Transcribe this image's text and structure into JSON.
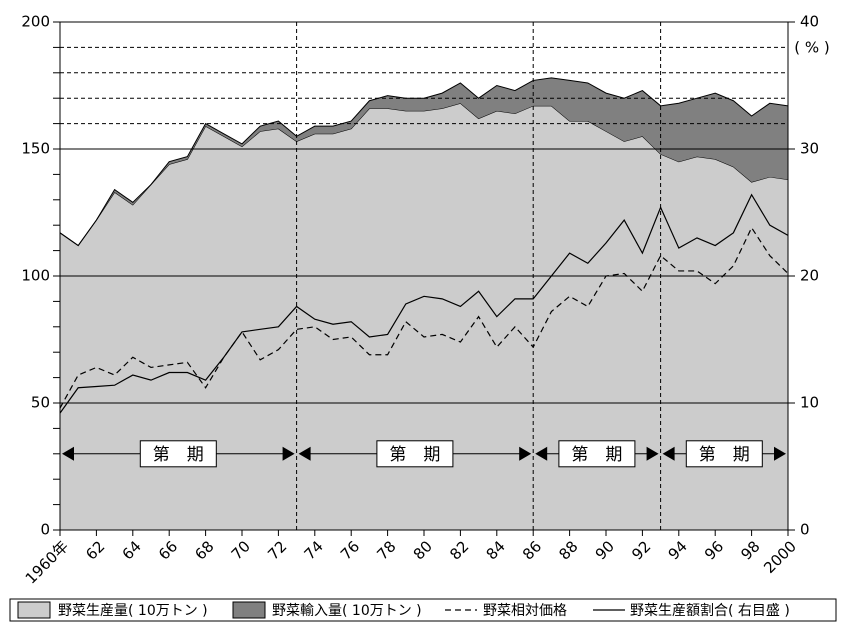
{
  "chart_data": {
    "type": "stacked-area-line",
    "x": [
      1960,
      1961,
      1962,
      1963,
      1964,
      1965,
      1966,
      1967,
      1968,
      1969,
      1970,
      1971,
      1972,
      1973,
      1974,
      1975,
      1976,
      1977,
      1978,
      1979,
      1980,
      1981,
      1982,
      1983,
      1984,
      1985,
      1986,
      1987,
      1988,
      1989,
      1990,
      1991,
      1992,
      1993,
      1994,
      1995,
      1996,
      1997,
      1998,
      1999,
      2000
    ],
    "series": [
      {
        "name": "野菜生産量( 10万トン )",
        "color": "#cccccc",
        "kind": "area",
        "values": [
          117,
          112,
          122,
          133,
          128,
          136,
          144,
          146,
          159,
          155,
          151,
          157,
          158,
          153,
          156,
          156,
          158,
          166,
          166,
          165,
          165,
          166,
          168,
          162,
          165,
          164,
          167,
          167,
          161,
          161,
          157,
          153,
          155,
          148,
          145,
          147,
          146,
          143,
          137,
          139,
          138
        ]
      },
      {
        "name": "野菜輸入量( 10万トン )",
        "color": "#808080",
        "kind": "area",
        "values": [
          0,
          0,
          0,
          1,
          1,
          0,
          1,
          1,
          1,
          1,
          1,
          2,
          3,
          2,
          3,
          3,
          3,
          3,
          5,
          5,
          5,
          6,
          8,
          8,
          10,
          9,
          10,
          11,
          16,
          15,
          15,
          17,
          18,
          19,
          23,
          23,
          26,
          26,
          26,
          29,
          29
        ]
      },
      {
        "name": "野菜相対価格",
        "color": "#000000",
        "kind": "line",
        "dash": true,
        "axis": "y2",
        "values": [
          9.6,
          12.2,
          12.8,
          12.2,
          13.6,
          12.8,
          13,
          13.2,
          11.2,
          13.6,
          15.6,
          13.4,
          14.2,
          15.8,
          16,
          15,
          15.2,
          13.8,
          13.8,
          16.4,
          15.2,
          15.4,
          14.8,
          16.8,
          14.4,
          16,
          14.4,
          17.2,
          18.4,
          17.6,
          20,
          20.2,
          18.8,
          21.6,
          20.4,
          20.4,
          19.4,
          20.8,
          23.8,
          21.6,
          20.2
        ]
      },
      {
        "name": "野菜生産額割合( 右目盛 )",
        "color": "#000000",
        "kind": "line",
        "dash": false,
        "axis": "y2",
        "values": [
          9.2,
          11.2,
          11.3,
          11.4,
          12.2,
          11.8,
          12.4,
          12.4,
          11.8,
          13.6,
          15.6,
          15.8,
          16,
          17.6,
          16.6,
          16.2,
          16.4,
          15.2,
          15.4,
          17.8,
          18.4,
          18.2,
          17.6,
          18.8,
          16.8,
          18.2,
          18.2,
          20,
          21.8,
          21,
          22.6,
          24.4,
          21.8,
          25.4,
          22.2,
          23,
          22.4,
          23.4,
          26.4,
          24,
          23.2
        ]
      }
    ],
    "xlim": [
      1960,
      2000
    ],
    "xticks": [
      {
        "value": 1960,
        "label": "1960年"
      },
      {
        "value": 1962,
        "label": "62"
      },
      {
        "value": 1964,
        "label": "64"
      },
      {
        "value": 1966,
        "label": "66"
      },
      {
        "value": 1968,
        "label": "68"
      },
      {
        "value": 1970,
        "label": "70"
      },
      {
        "value": 1972,
        "label": "72"
      },
      {
        "value": 1974,
        "label": "74"
      },
      {
        "value": 1976,
        "label": "76"
      },
      {
        "value": 1978,
        "label": "78"
      },
      {
        "value": 1980,
        "label": "80"
      },
      {
        "value": 1982,
        "label": "82"
      },
      {
        "value": 1984,
        "label": "84"
      },
      {
        "value": 1986,
        "label": "86"
      },
      {
        "value": 1988,
        "label": "88"
      },
      {
        "value": 1990,
        "label": "90"
      },
      {
        "value": 1992,
        "label": "92"
      },
      {
        "value": 1994,
        "label": "94"
      },
      {
        "value": 1996,
        "label": "96"
      },
      {
        "value": 1998,
        "label": "98"
      },
      2000
    ],
    "ylim": [
      0,
      200
    ],
    "yticks": [
      0,
      50,
      100,
      150,
      200
    ],
    "yminor": [
      10,
      20,
      30,
      40,
      60,
      70,
      80,
      90,
      110,
      120,
      130,
      140,
      160,
      170,
      180,
      190
    ],
    "dashed_grid": [
      160,
      170,
      180,
      190
    ],
    "y2lim": [
      0,
      40
    ],
    "y2ticks": [
      0,
      10,
      20,
      30,
      40
    ],
    "y2label": "( % )",
    "periods": [
      {
        "label": "第　期",
        "start": 1960,
        "end": 1973
      },
      {
        "label": "第　期",
        "start": 1973,
        "end": 1986
      },
      {
        "label": "第　期",
        "start": 1986,
        "end": 1993
      },
      {
        "label": "第　期",
        "start": 1993,
        "end": 2000
      }
    ]
  }
}
